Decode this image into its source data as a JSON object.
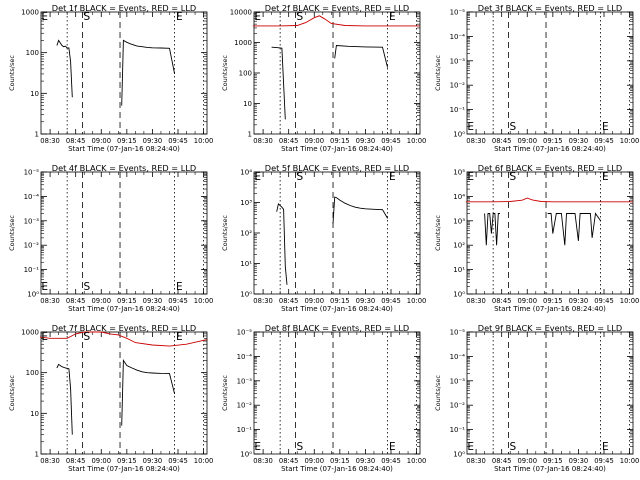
{
  "chart_data": [
    {
      "type": "line",
      "title": "Det 1f BLACK = Events, RED = LLD",
      "xlabel": "Start Time (07-Jan-16 08:24:40)",
      "ylabel": "Counts/sec",
      "scale": "log",
      "ylim": [
        1,
        1000
      ],
      "y_ticks": [
        "1",
        "10",
        "100",
        "1000"
      ],
      "markers": [
        "E",
        "S",
        "E"
      ],
      "x_ticks": [
        "08:30",
        "08:45",
        "09:00",
        "09:15",
        "09:30",
        "09:45",
        "10:00"
      ],
      "series": [
        {
          "color": "#000000",
          "segments": [
            {
              "x": [
                "08:34",
                "08:35",
                "08:37",
                "08:38",
                "08:39",
                "08:40",
                "08:41",
                "08:42",
                "08:43"
              ],
              "y": [
                150,
                200,
                150,
                140,
                145,
                130,
                130,
                60,
                8
              ]
            },
            {
              "x": [
                "09:12",
                "09:13",
                "09:15",
                "09:17",
                "09:19",
                "09:21",
                "09:24",
                "09:27",
                "09:30",
                "09:35",
                "09:40",
                "09:43"
              ],
              "y": [
                5,
                200,
                180,
                165,
                155,
                145,
                140,
                135,
                132,
                130,
                128,
                30
              ]
            }
          ]
        }
      ]
    },
    {
      "type": "line",
      "title": "Det 2f BLACK = Events, RED = LLD",
      "xlabel": "Start Time (07-Jan-16 08:24:40)",
      "ylabel": "Counts/sec",
      "scale": "log",
      "ylim": [
        1,
        10000
      ],
      "y_ticks": [
        "1",
        "10",
        "100",
        "1000",
        "10000"
      ],
      "markers": [
        "E",
        "S",
        "E"
      ],
      "x_ticks": [
        "08:30",
        "08:45",
        "09:00",
        "09:15",
        "09:30",
        "09:45",
        "10:00"
      ],
      "series": [
        {
          "color": "#cc0000",
          "segments": [
            {
              "x": [
                "08:24",
                "08:40",
                "08:50",
                "08:55",
                "09:00",
                "09:03",
                "09:06",
                "09:10",
                "09:18",
                "09:30",
                "09:45",
                "10:02"
              ],
              "y": [
                3500,
                3500,
                3600,
                4500,
                6500,
                7500,
                6000,
                4200,
                3600,
                3500,
                3500,
                3500
              ]
            }
          ]
        },
        {
          "color": "#000000",
          "segments": [
            {
              "x": [
                "08:35",
                "08:38",
                "08:41",
                "08:43"
              ],
              "y": [
                700,
                680,
                650,
                3
              ]
            },
            {
              "x": [
                "09:12",
                "09:13",
                "09:20",
                "09:30",
                "09:40",
                "09:43"
              ],
              "y": [
                300,
                800,
                750,
                720,
                700,
                150
              ]
            }
          ]
        }
      ]
    },
    {
      "type": "line",
      "title": "Det 3f BLACK = Events, RED = LLD",
      "xlabel": "Start Time (07-Jan-16 08:24:40)",
      "ylabel": "Counts/sec",
      "scale": "log",
      "ylim": [
        1,
        1e-05
      ],
      "y_ticks": [
        "10⁰",
        "10⁻¹",
        "10⁻²",
        "10⁻³",
        "10⁻⁴",
        "10⁻⁵"
      ],
      "markers": [
        "E",
        "S",
        "E"
      ],
      "x_ticks": [
        "08:30",
        "08:45",
        "09:00",
        "09:15",
        "09:30",
        "09:45",
        "10:00"
      ],
      "series": []
    },
    {
      "type": "line",
      "title": "Det 4f BLACK = Events, RED = LLD",
      "xlabel": "Start Time (07-Jan-16 08:24:40)",
      "ylabel": "Counts/sec",
      "scale": "log",
      "ylim": [
        1,
        1e-05
      ],
      "y_ticks": [
        "10⁰",
        "10⁻¹",
        "10⁻²",
        "10⁻³",
        "10⁻⁴",
        "10⁻⁵"
      ],
      "markers": [
        "E",
        "S",
        "E"
      ],
      "x_ticks": [
        "08:30",
        "08:45",
        "09:00",
        "09:15",
        "09:30",
        "09:45",
        "10:00"
      ],
      "series": []
    },
    {
      "type": "line",
      "title": "Det 5f BLACK = Events, RED = LLD",
      "xlabel": "Start Time (07-Jan-16 08:24:40)",
      "ylabel": "Counts/sec",
      "scale": "log",
      "ylim": [
        1,
        10000
      ],
      "y_ticks": [
        "10⁰",
        "10¹",
        "10²",
        "10³",
        "10⁴"
      ],
      "markers": [
        "E",
        "S",
        "E"
      ],
      "x_ticks": [
        "08:30",
        "08:45",
        "09:00",
        "09:15",
        "09:30",
        "09:45",
        "10:00"
      ],
      "series": [
        {
          "color": "#000000",
          "segments": [
            {
              "x": [
                "08:38",
                "08:39",
                "08:41",
                "08:42",
                "08:43",
                "08:44"
              ],
              "y": [
                500,
                900,
                700,
                600,
                8,
                2
              ]
            },
            {
              "x": [
                "09:11",
                "09:12",
                "09:13",
                "09:15",
                "09:18",
                "09:21",
                "09:24",
                "09:27",
                "09:30",
                "09:35",
                "09:40",
                "09:43"
              ],
              "y": [
                200,
                1500,
                1450,
                1200,
                950,
                800,
                700,
                650,
                620,
                600,
                580,
                300
              ]
            }
          ]
        }
      ]
    },
    {
      "type": "line",
      "title": "Det 6f BLACK = Events, RED = LLD",
      "xlabel": "Start Time (07-Jan-16 08:24:40)",
      "ylabel": "Counts/sec",
      "scale": "log",
      "ylim": [
        1,
        100000
      ],
      "y_ticks": [
        "10⁰",
        "10¹",
        "10²",
        "10³",
        "10⁴",
        "10⁵"
      ],
      "markers": [
        "E",
        "S",
        "E"
      ],
      "x_ticks": [
        "08:30",
        "08:45",
        "09:00",
        "09:15",
        "09:30",
        "09:45",
        "10:00"
      ],
      "series": [
        {
          "color": "#cc0000",
          "segments": [
            {
              "x": [
                "08:24",
                "08:40",
                "08:50",
                "08:57",
                "09:00",
                "09:03",
                "09:08",
                "09:15",
                "09:30",
                "09:45",
                "10:02"
              ],
              "y": [
                6000,
                6000,
                6200,
                7000,
                8500,
                7200,
                6200,
                6000,
                6000,
                6000,
                6000
              ]
            }
          ]
        },
        {
          "color": "#000000",
          "segments": [
            {
              "x": [
                "08:35",
                "08:36",
                "08:37",
                "08:38",
                "08:39",
                "08:40",
                "08:41",
                "08:42",
                "08:43",
                "08:44"
              ],
              "y": [
                2000,
                100,
                2000,
                2000,
                300,
                2000,
                2000,
                100,
                2000,
                2000
              ]
            },
            {
              "x": [
                "09:12",
                "09:14",
                "09:15",
                "09:17",
                "09:20",
                "09:22",
                "09:23",
                "09:25",
                "09:28",
                "09:30",
                "09:31",
                "09:34",
                "09:37",
                "09:38",
                "09:40",
                "09:43"
              ],
              "y": [
                2000,
                2000,
                300,
                2000,
                2000,
                100,
                2000,
                2000,
                2000,
                150,
                2000,
                2000,
                2000,
                200,
                2000,
                1000
              ]
            }
          ]
        }
      ]
    },
    {
      "type": "line",
      "title": "Det 7f BLACK = Events, RED = LLD",
      "xlabel": "Start Time (07-Jan-16 08:24:40)",
      "ylabel": "Counts/sec",
      "scale": "log",
      "ylim": [
        1,
        1000
      ],
      "y_ticks": [
        "1",
        "10",
        "100",
        "1000"
      ],
      "markers": [
        "E",
        "S",
        "E"
      ],
      "x_ticks": [
        "08:30",
        "08:45",
        "09:00",
        "09:15",
        "09:30",
        "09:45",
        "10:00"
      ],
      "series": [
        {
          "color": "#cc0000",
          "segments": [
            {
              "x": [
                "08:24",
                "08:30",
                "08:40",
                "08:45",
                "08:50",
                "08:55",
                "09:00",
                "09:05",
                "09:10",
                "09:15",
                "09:20",
                "09:30",
                "09:40",
                "09:50",
                "10:02"
              ],
              "y": [
                750,
                700,
                700,
                900,
                1100,
                1200,
                1000,
                900,
                850,
                700,
                550,
                480,
                450,
                500,
                650
              ]
            }
          ]
        },
        {
          "color": "#000000",
          "segments": [
            {
              "x": [
                "08:34",
                "08:35",
                "08:37",
                "08:39",
                "08:41",
                "08:42",
                "08:43"
              ],
              "y": [
                130,
                160,
                140,
                130,
                125,
                40,
                3
              ]
            },
            {
              "x": [
                "09:12",
                "09:13",
                "09:15",
                "09:18",
                "09:21",
                "09:24",
                "09:27",
                "09:30",
                "09:35",
                "09:40",
                "09:43"
              ],
              "y": [
                5,
                200,
                150,
                130,
                115,
                105,
                100,
                98,
                96,
                95,
                30
              ]
            }
          ]
        }
      ]
    },
    {
      "type": "line",
      "title": "Det 8f BLACK = Events, RED = LLD",
      "xlabel": "Start Time (07-Jan-16 08:24:40)",
      "ylabel": "Counts/sec",
      "scale": "log",
      "ylim": [
        1,
        1e-05
      ],
      "y_ticks": [
        "10⁰",
        "10⁻¹",
        "10⁻²",
        "10⁻³",
        "10⁻⁴",
        "10⁻⁵"
      ],
      "markers": [
        "E",
        "S",
        "E"
      ],
      "x_ticks": [
        "08:30",
        "08:45",
        "09:00",
        "09:15",
        "09:30",
        "09:45",
        "10:00"
      ],
      "series": []
    },
    {
      "type": "line",
      "title": "Det 9f BLACK = Events, RED = LLD",
      "xlabel": "Start Time (07-Jan-16 08:24:40)",
      "ylabel": "Counts/sec",
      "scale": "log",
      "ylim": [
        1,
        1e-05
      ],
      "y_ticks": [
        "10⁰",
        "10⁻¹",
        "10⁻²",
        "10⁻³",
        "10⁻⁴",
        "10⁻⁵"
      ],
      "markers": [
        "E",
        "S",
        "E"
      ],
      "x_ticks": [
        "08:30",
        "08:45",
        "09:00",
        "09:15",
        "09:30",
        "09:45",
        "10:00"
      ],
      "series": []
    }
  ]
}
